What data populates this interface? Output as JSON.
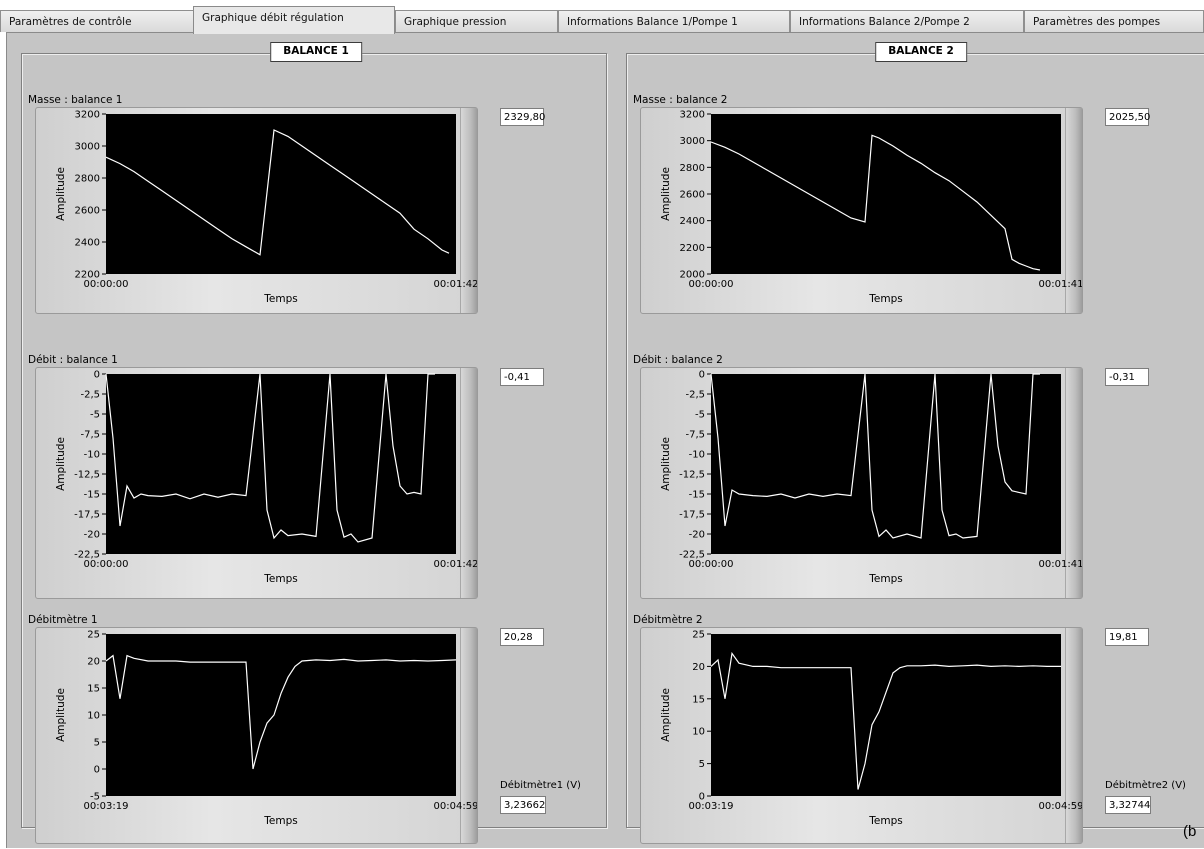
{
  "tabs": [
    {
      "label": "Paramètres de contrôle",
      "active": false
    },
    {
      "label": "Graphique débit régulation",
      "active": true
    },
    {
      "label": "Graphique pression",
      "active": false
    },
    {
      "label": "Informations Balance 1/Pompe 1",
      "active": false
    },
    {
      "label": "Informations Balance 2/Pompe 2",
      "active": false
    },
    {
      "label": "Paramètres des pompes",
      "active": false
    }
  ],
  "colors": {
    "plot_bg": "#000000",
    "trace": "#ffffff",
    "panel": "#c5c5c5"
  },
  "balances": [
    {
      "title": "BALANCE 1",
      "graphs": [
        {
          "label": "Masse : balance 1",
          "value": "2329,80",
          "ylabel": "Amplitude",
          "xlabel": "Temps",
          "x_start": "00:00:00",
          "x_end": "00:01:42",
          "yticks": [
            "3200",
            "3000",
            "2800",
            "2600",
            "2400",
            "2200"
          ]
        },
        {
          "label": "Débit : balance 1",
          "value": "-0,41",
          "ylabel": "Amplitude",
          "xlabel": "Temps",
          "x_start": "00:00:00",
          "x_end": "00:01:42",
          "yticks": [
            "0",
            "-2,5",
            "-5",
            "-7,5",
            "-10",
            "-12,5",
            "-15",
            "-17,5",
            "-20",
            "-22,5"
          ]
        },
        {
          "label": "Débitmètre 1",
          "value": "20,28",
          "ylabel": "Amplitude",
          "xlabel": "Temps",
          "x_start": "00:03:19",
          "x_end": "00:04:59",
          "yticks": [
            "25",
            "20",
            "15",
            "10",
            "5",
            "0",
            "-5"
          ]
        }
      ],
      "volt_label": "Débitmètre1 (V)",
      "volt_value": "3,23662"
    },
    {
      "title": "BALANCE 2",
      "graphs": [
        {
          "label": "Masse : balance 2",
          "value": "2025,50",
          "ylabel": "Amplitude",
          "xlabel": "Temps",
          "x_start": "00:00:00",
          "x_end": "00:01:41",
          "yticks": [
            "3200",
            "3000",
            "2800",
            "2600",
            "2400",
            "2200",
            "2000"
          ]
        },
        {
          "label": "Débit : balance 2",
          "value": "-0,31",
          "ylabel": "Amplitude",
          "xlabel": "Temps",
          "x_start": "00:00:00",
          "x_end": "00:01:41",
          "yticks": [
            "0",
            "-2,5",
            "-5",
            "-7,5",
            "-10",
            "-12,5",
            "-15",
            "-17,5",
            "-20",
            "-22,5"
          ]
        },
        {
          "label": "Débitmètre 2",
          "value": "19,81",
          "ylabel": "Amplitude",
          "xlabel": "Temps",
          "x_start": "00:03:19",
          "x_end": "00:04:59",
          "yticks": [
            "25",
            "20",
            "15",
            "10",
            "5",
            "0"
          ]
        }
      ],
      "volt_label": "Débitmètre2 (V)",
      "volt_value": "3,32744"
    }
  ],
  "chart_data": [
    {
      "type": "line",
      "title": "Masse : balance 1",
      "xlabel": "Temps",
      "ylabel": "Amplitude",
      "ylim": [
        2200,
        3200
      ],
      "x": [
        0,
        4,
        8,
        12,
        16,
        20,
        24,
        28,
        32,
        36,
        40,
        44,
        48,
        52,
        56,
        60,
        64,
        68,
        72,
        76,
        80,
        84,
        88,
        92,
        96,
        98
      ],
      "y": [
        2930,
        2890,
        2840,
        2780,
        2720,
        2660,
        2600,
        2540,
        2480,
        2420,
        2370,
        2320,
        3100,
        3060,
        3000,
        2940,
        2880,
        2820,
        2760,
        2700,
        2640,
        2580,
        2480,
        2420,
        2350,
        2330
      ]
    },
    {
      "type": "line",
      "title": "Débit : balance 1",
      "xlabel": "Temps",
      "ylabel": "Amplitude",
      "ylim": [
        -22.5,
        0
      ],
      "x": [
        0,
        2,
        4,
        6,
        8,
        10,
        12,
        16,
        20,
        24,
        28,
        32,
        36,
        40,
        44,
        46,
        48,
        50,
        52,
        56,
        60,
        64,
        66,
        68,
        70,
        72,
        76,
        80,
        82,
        84,
        86,
        88,
        90,
        92,
        94
      ],
      "y": [
        0,
        -8,
        -19,
        -14,
        -15.5,
        -15,
        -15.2,
        -15.3,
        -15,
        -15.6,
        -15,
        -15.4,
        -15,
        -15.2,
        0,
        -17,
        -20.5,
        -19.5,
        -20.2,
        -20,
        -20.3,
        0,
        -17,
        -20.4,
        -20,
        -21,
        -20.5,
        0,
        -9,
        -14,
        -15,
        -14.8,
        -15,
        0,
        0
      ]
    },
    {
      "type": "line",
      "title": "Débitmètre 1",
      "xlabel": "Temps",
      "ylabel": "Amplitude",
      "ylim": [
        -5,
        25
      ],
      "x": [
        0,
        2,
        4,
        6,
        8,
        12,
        16,
        20,
        24,
        28,
        32,
        36,
        40,
        42,
        44,
        46,
        48,
        50,
        52,
        54,
        56,
        60,
        64,
        68,
        72,
        76,
        80,
        84,
        88,
        92,
        96,
        100
      ],
      "y": [
        20,
        21,
        13,
        21,
        20.5,
        20,
        20,
        20,
        19.8,
        19.8,
        19.8,
        19.8,
        19.8,
        0,
        5,
        8.5,
        10,
        14,
        17,
        19,
        20,
        20.2,
        20.1,
        20.3,
        20,
        20.1,
        20.2,
        20,
        20.1,
        20,
        20.1,
        20.2
      ]
    },
    {
      "type": "line",
      "title": "Masse : balance 2",
      "xlabel": "Temps",
      "ylabel": "Amplitude",
      "ylim": [
        2000,
        3200
      ],
      "x": [
        0,
        4,
        8,
        12,
        16,
        20,
        24,
        28,
        32,
        36,
        40,
        44,
        46,
        48,
        52,
        56,
        60,
        64,
        68,
        72,
        76,
        80,
        84,
        86,
        88,
        90,
        92,
        94
      ],
      "y": [
        2990,
        2950,
        2900,
        2840,
        2780,
        2720,
        2660,
        2600,
        2540,
        2480,
        2420,
        2390,
        3040,
        3020,
        2960,
        2890,
        2830,
        2760,
        2700,
        2620,
        2540,
        2440,
        2340,
        2110,
        2080,
        2060,
        2040,
        2030
      ]
    },
    {
      "type": "line",
      "title": "Débit : balance 2",
      "xlabel": "Temps",
      "ylabel": "Amplitude",
      "ylim": [
        -22.5,
        0
      ],
      "x": [
        0,
        2,
        4,
        6,
        8,
        12,
        16,
        20,
        24,
        28,
        32,
        36,
        40,
        44,
        46,
        48,
        50,
        52,
        56,
        60,
        64,
        66,
        68,
        70,
        72,
        76,
        80,
        82,
        84,
        86,
        88,
        90,
        92,
        94
      ],
      "y": [
        0,
        -8,
        -19,
        -14.5,
        -15,
        -15.2,
        -15.3,
        -15,
        -15.5,
        -15,
        -15.3,
        -15,
        -15.2,
        0,
        -17,
        -20.3,
        -19.5,
        -20.5,
        -20,
        -20.5,
        0,
        -17,
        -20.2,
        -20,
        -20.5,
        -20.3,
        0,
        -9,
        -13.5,
        -14.6,
        -14.8,
        -15,
        0,
        0
      ]
    },
    {
      "type": "line",
      "title": "Débitmètre 2",
      "xlabel": "Temps",
      "ylabel": "Amplitude",
      "ylim": [
        0,
        25
      ],
      "x": [
        0,
        2,
        4,
        6,
        8,
        12,
        16,
        20,
        24,
        28,
        32,
        36,
        40,
        42,
        44,
        46,
        48,
        50,
        52,
        54,
        56,
        60,
        64,
        68,
        72,
        76,
        80,
        84,
        88,
        92,
        96,
        100
      ],
      "y": [
        20,
        21,
        15,
        22,
        20.5,
        20,
        20,
        19.8,
        19.8,
        19.8,
        19.8,
        19.8,
        19.8,
        1,
        5,
        11,
        13,
        16,
        19,
        19.8,
        20.1,
        20.1,
        20.2,
        20,
        20.1,
        20.2,
        20,
        20.1,
        20,
        20.1,
        20,
        20
      ]
    }
  ],
  "corner_text": "(b"
}
